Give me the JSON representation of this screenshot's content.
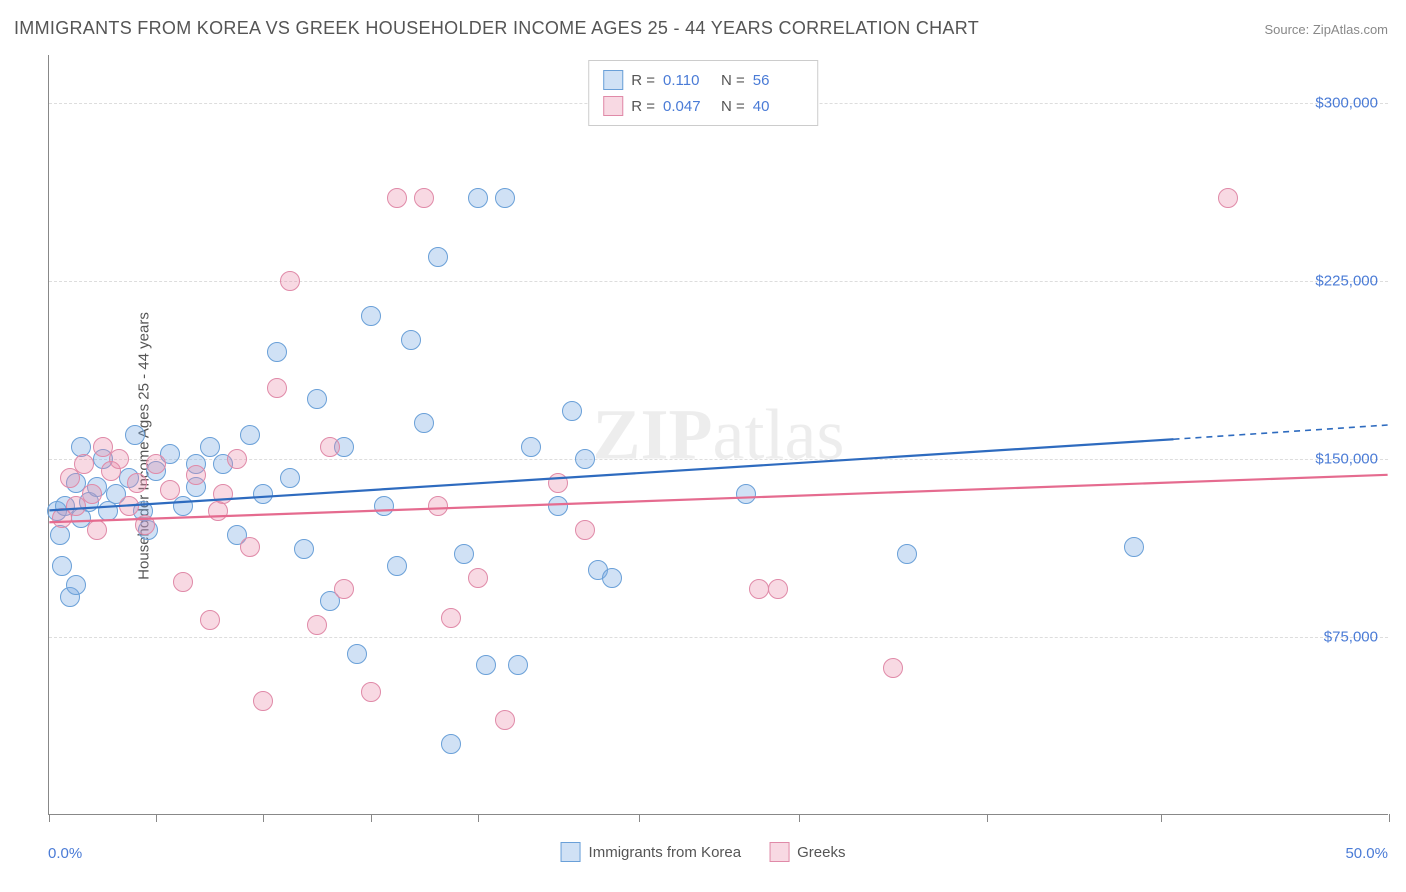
{
  "title": "IMMIGRANTS FROM KOREA VS GREEK HOUSEHOLDER INCOME AGES 25 - 44 YEARS CORRELATION CHART",
  "source": "Source: ZipAtlas.com",
  "watermark": {
    "bold": "ZIP",
    "rest": "atlas"
  },
  "chart": {
    "type": "scatter",
    "background_color": "#ffffff",
    "grid_color": "#dddddd",
    "axis_color": "#888888",
    "y_axis_title": "Householder Income Ages 25 - 44 years",
    "xlim": [
      0,
      50
    ],
    "ylim": [
      0,
      320000
    ],
    "x_tick_positions_pct": [
      0,
      8,
      16,
      24,
      32,
      44,
      56,
      70,
      83,
      100
    ],
    "x_labels": {
      "min": "0.0%",
      "max": "50.0%"
    },
    "y_gridlines": [
      75000,
      150000,
      225000,
      300000
    ],
    "y_labels": [
      "$75,000",
      "$150,000",
      "$225,000",
      "$300,000"
    ],
    "axis_label_color": "#4a7bd6",
    "axis_title_color": "#555555",
    "marker_radius": 10,
    "marker_stroke_width": 1.2,
    "series": [
      {
        "name": "Immigrants from Korea",
        "fill": "rgba(120,170,225,0.35)",
        "stroke": "#6aa0d8",
        "trend_color": "#2e6bbf",
        "trend_start": [
          0,
          128000
        ],
        "trend_end_solid": [
          42,
          158000
        ],
        "trend_end_dash": [
          50,
          164000
        ],
        "R": "0.110",
        "N": "56",
        "points": [
          [
            0.3,
            128000
          ],
          [
            0.4,
            118000
          ],
          [
            0.5,
            105000
          ],
          [
            0.6,
            130000
          ],
          [
            0.8,
            92000
          ],
          [
            1.0,
            140000
          ],
          [
            1.2,
            155000
          ],
          [
            1.0,
            97000
          ],
          [
            1.2,
            125000
          ],
          [
            1.5,
            132000
          ],
          [
            1.8,
            138000
          ],
          [
            2.0,
            150000
          ],
          [
            2.2,
            128000
          ],
          [
            2.5,
            135000
          ],
          [
            3.0,
            142000
          ],
          [
            3.2,
            160000
          ],
          [
            3.5,
            128000
          ],
          [
            4.0,
            145000
          ],
          [
            4.5,
            152000
          ],
          [
            5.0,
            130000
          ],
          [
            5.5,
            148000
          ],
          [
            6.0,
            155000
          ],
          [
            7.0,
            118000
          ],
          [
            7.5,
            160000
          ],
          [
            8.0,
            135000
          ],
          [
            8.5,
            195000
          ],
          [
            9.0,
            142000
          ],
          [
            9.5,
            112000
          ],
          [
            10.0,
            175000
          ],
          [
            10.5,
            90000
          ],
          [
            11.0,
            155000
          ],
          [
            11.5,
            68000
          ],
          [
            12.0,
            210000
          ],
          [
            12.5,
            130000
          ],
          [
            13.0,
            105000
          ],
          [
            13.5,
            200000
          ],
          [
            14.0,
            165000
          ],
          [
            14.5,
            235000
          ],
          [
            15.0,
            30000
          ],
          [
            15.5,
            110000
          ],
          [
            16.0,
            260000
          ],
          [
            16.3,
            63000
          ],
          [
            17.0,
            260000
          ],
          [
            17.5,
            63000
          ],
          [
            18.0,
            155000
          ],
          [
            19.0,
            130000
          ],
          [
            19.5,
            170000
          ],
          [
            20.0,
            150000
          ],
          [
            20.5,
            103000
          ],
          [
            21.0,
            100000
          ],
          [
            26.0,
            135000
          ],
          [
            32.0,
            110000
          ],
          [
            40.5,
            113000
          ],
          [
            5.5,
            138000
          ],
          [
            6.5,
            148000
          ],
          [
            3.7,
            120000
          ]
        ]
      },
      {
        "name": "Greeks",
        "fill": "rgba(235,140,170,0.33)",
        "stroke": "#e08aa8",
        "trend_color": "#e56b8f",
        "trend_start": [
          0,
          123000
        ],
        "trend_end_solid": [
          50,
          143000
        ],
        "R": "0.047",
        "N": "40",
        "points": [
          [
            0.5,
            125000
          ],
          [
            0.8,
            142000
          ],
          [
            1.0,
            130000
          ],
          [
            1.3,
            148000
          ],
          [
            1.6,
            135000
          ],
          [
            1.8,
            120000
          ],
          [
            2.0,
            155000
          ],
          [
            2.3,
            145000
          ],
          [
            2.6,
            150000
          ],
          [
            3.0,
            130000
          ],
          [
            3.3,
            140000
          ],
          [
            3.6,
            122000
          ],
          [
            4.0,
            148000
          ],
          [
            4.5,
            137000
          ],
          [
            5.0,
            98000
          ],
          [
            5.5,
            143000
          ],
          [
            6.0,
            82000
          ],
          [
            6.5,
            135000
          ],
          [
            7.0,
            150000
          ],
          [
            7.5,
            113000
          ],
          [
            8.0,
            48000
          ],
          [
            8.5,
            180000
          ],
          [
            9.0,
            225000
          ],
          [
            10.0,
            80000
          ],
          [
            10.5,
            155000
          ],
          [
            11.0,
            95000
          ],
          [
            12.0,
            52000
          ],
          [
            13.0,
            260000
          ],
          [
            14.0,
            260000
          ],
          [
            14.5,
            130000
          ],
          [
            15.0,
            83000
          ],
          [
            16.0,
            100000
          ],
          [
            17.0,
            40000
          ],
          [
            19.0,
            140000
          ],
          [
            20.0,
            120000
          ],
          [
            26.5,
            95000
          ],
          [
            27.2,
            95000
          ],
          [
            31.5,
            62000
          ],
          [
            44.0,
            260000
          ],
          [
            6.3,
            128000
          ]
        ]
      }
    ]
  },
  "legend_top": {
    "rows": [
      {
        "series_idx": 0,
        "R_label": "R =",
        "N_label": "N ="
      },
      {
        "series_idx": 1,
        "R_label": "R =",
        "N_label": "N ="
      }
    ]
  },
  "legend_bottom": {
    "items": [
      {
        "series_idx": 0
      },
      {
        "series_idx": 1
      }
    ]
  }
}
